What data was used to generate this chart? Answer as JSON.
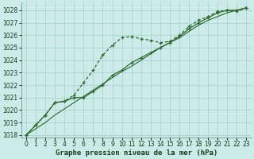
{
  "xlabel": "Graphe pression niveau de la mer (hPa)",
  "bg_color": "#cceae8",
  "grid_color": "#aad8d5",
  "line_color": "#2d6a2d",
  "xlim": [
    -0.5,
    23.5
  ],
  "ylim": [
    1017.8,
    1028.6
  ],
  "yticks": [
    1018,
    1019,
    1020,
    1021,
    1022,
    1023,
    1024,
    1025,
    1026,
    1027,
    1028
  ],
  "xticks": [
    0,
    1,
    2,
    3,
    4,
    5,
    6,
    7,
    8,
    9,
    10,
    11,
    12,
    13,
    14,
    15,
    16,
    17,
    18,
    19,
    20,
    21,
    22,
    23
  ],
  "series1_x": [
    0,
    1,
    2,
    3,
    4,
    5,
    6,
    7,
    8,
    9,
    10,
    11,
    12,
    13,
    14,
    15,
    16,
    17,
    18,
    19,
    20,
    21,
    22,
    23
  ],
  "series1_y": [
    1018.0,
    1018.8,
    1019.6,
    1020.6,
    1020.7,
    1021.2,
    1022.2,
    1023.2,
    1024.4,
    1025.2,
    1025.8,
    1025.9,
    1025.7,
    1025.6,
    1025.4,
    1025.5,
    1026.0,
    1026.7,
    1027.2,
    1027.5,
    1027.9,
    1028.0,
    1027.9,
    1028.2
  ],
  "series2_x": [
    0,
    1,
    2,
    3,
    4,
    5,
    6,
    7,
    8,
    9,
    10,
    11,
    12,
    13,
    14,
    15,
    16,
    17,
    18,
    19,
    20,
    21,
    22,
    23
  ],
  "series2_y": [
    1018.0,
    1018.8,
    1019.6,
    1020.6,
    1020.7,
    1021.0,
    1021.0,
    1021.5,
    1022.0,
    1022.8,
    1023.2,
    1023.8,
    1024.2,
    1024.6,
    1025.0,
    1025.4,
    1025.9,
    1026.5,
    1027.0,
    1027.4,
    1027.8,
    1028.0,
    1028.0,
    1028.2
  ],
  "series3_x": [
    0,
    1,
    2,
    3,
    4,
    5,
    6,
    7,
    8,
    9,
    10,
    11,
    12,
    13,
    14,
    15,
    16,
    17,
    18,
    19,
    20,
    21,
    22,
    23
  ],
  "series3_y": [
    1018.0,
    1018.5,
    1019.0,
    1019.6,
    1020.1,
    1020.6,
    1021.1,
    1021.6,
    1022.1,
    1022.6,
    1023.1,
    1023.5,
    1024.0,
    1024.5,
    1025.0,
    1025.4,
    1025.8,
    1026.3,
    1026.8,
    1027.2,
    1027.5,
    1027.8,
    1028.0,
    1028.2
  ]
}
